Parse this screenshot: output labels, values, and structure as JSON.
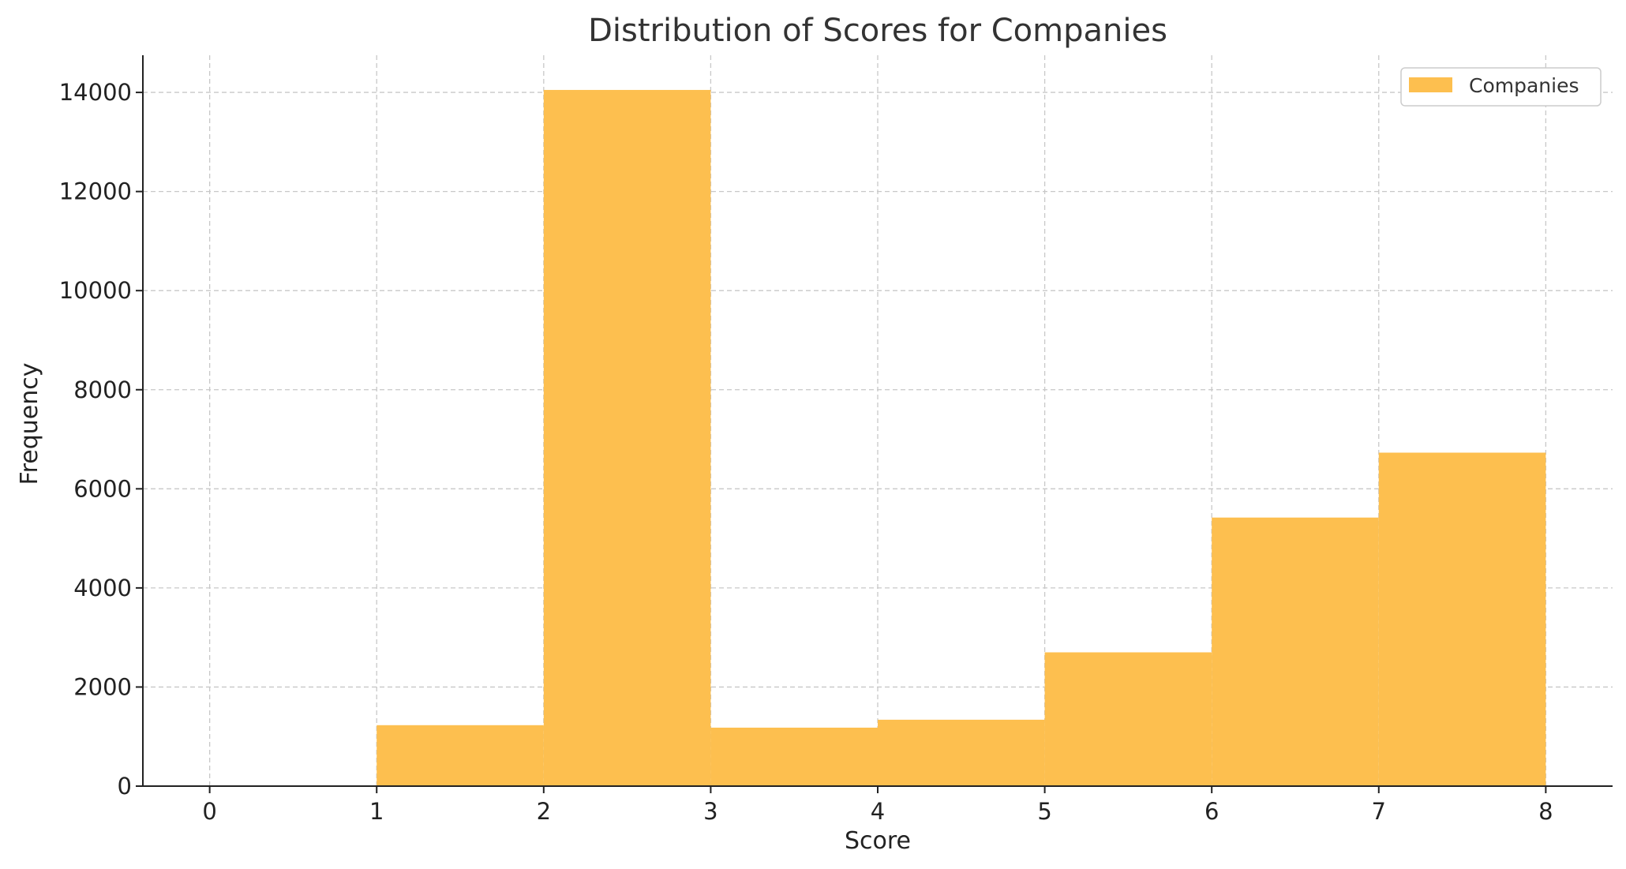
{
  "chart_data": {
    "type": "bar",
    "title": "Distribution of Scores for Companies",
    "xlabel": "Score",
    "ylabel": "Frequency",
    "bin_edges": [
      0,
      1,
      2,
      3,
      4,
      5,
      6,
      7,
      8
    ],
    "series": [
      {
        "name": "Companies",
        "color": "#FDBF4F",
        "values": [
          0,
          1230,
          14050,
          1180,
          1340,
          2700,
          5420,
          6730
        ]
      }
    ],
    "xlim": [
      -0.4,
      8.4
    ],
    "ylim": [
      0,
      14750
    ],
    "xticks": [
      "0",
      "1",
      "2",
      "3",
      "4",
      "5",
      "6",
      "7",
      "8"
    ],
    "yticks": [
      "0",
      "2000",
      "4000",
      "6000",
      "8000",
      "10000",
      "12000",
      "14000"
    ],
    "grid": true,
    "legend_position": "top-right"
  }
}
